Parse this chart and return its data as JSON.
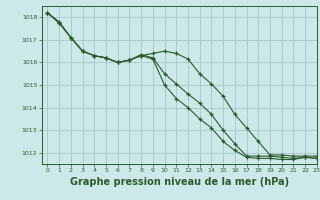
{
  "background_color": "#cce8e8",
  "grid_color": "#aacccc",
  "line_color": "#2d5a2d",
  "marker_color": "#2d5a2d",
  "xlabel": "Graphe pression niveau de la mer (hPa)",
  "xlabel_fontsize": 7,
  "xlabel_bold": true,
  "ylim": [
    1011.5,
    1018.5
  ],
  "xlim": [
    -0.5,
    23
  ],
  "yticks": [
    1012,
    1013,
    1014,
    1015,
    1016,
    1017,
    1018
  ],
  "xticks": [
    0,
    1,
    2,
    3,
    4,
    5,
    6,
    7,
    8,
    9,
    10,
    11,
    12,
    13,
    14,
    15,
    16,
    17,
    18,
    19,
    20,
    21,
    22,
    23
  ],
  "series1_x": [
    0,
    1,
    2,
    3,
    4,
    5,
    6,
    7,
    8,
    9,
    10,
    11,
    12,
    13,
    14,
    15,
    16,
    17,
    18,
    19,
    20,
    21,
    22,
    23
  ],
  "series1_y": [
    1018.2,
    1017.8,
    1017.1,
    1016.5,
    1016.3,
    1016.2,
    1016.0,
    1016.1,
    1016.3,
    1016.4,
    1016.5,
    1016.4,
    1016.15,
    1015.5,
    1015.05,
    1014.5,
    1013.7,
    1013.1,
    1012.5,
    1011.9,
    1011.9,
    1011.85,
    1011.85,
    1011.85
  ],
  "series2_x": [
    0,
    1,
    2,
    3,
    4,
    5,
    6,
    7,
    8,
    9,
    10,
    11,
    12,
    13,
    14,
    15,
    16,
    17,
    18,
    19,
    20,
    21,
    22,
    23
  ],
  "series2_y": [
    1018.2,
    1017.75,
    1017.1,
    1016.5,
    1016.3,
    1016.2,
    1016.0,
    1016.1,
    1016.35,
    1016.2,
    1015.5,
    1015.05,
    1014.6,
    1014.2,
    1013.7,
    1013.0,
    1012.4,
    1011.85,
    1011.85,
    1011.85,
    1011.8,
    1011.75,
    1011.8,
    1011.75
  ],
  "series3_x": [
    0,
    1,
    2,
    3,
    4,
    5,
    6,
    7,
    8,
    9,
    10,
    11,
    12,
    13,
    14,
    15,
    16,
    17,
    18,
    19,
    20,
    21,
    22,
    23
  ],
  "series3_y": [
    1018.2,
    1017.75,
    1017.1,
    1016.5,
    1016.3,
    1016.2,
    1016.0,
    1016.1,
    1016.3,
    1016.15,
    1015.0,
    1014.4,
    1014.0,
    1013.5,
    1013.1,
    1012.5,
    1012.1,
    1011.8,
    1011.75,
    1011.75,
    1011.7,
    1011.7,
    1011.8,
    1011.75
  ]
}
